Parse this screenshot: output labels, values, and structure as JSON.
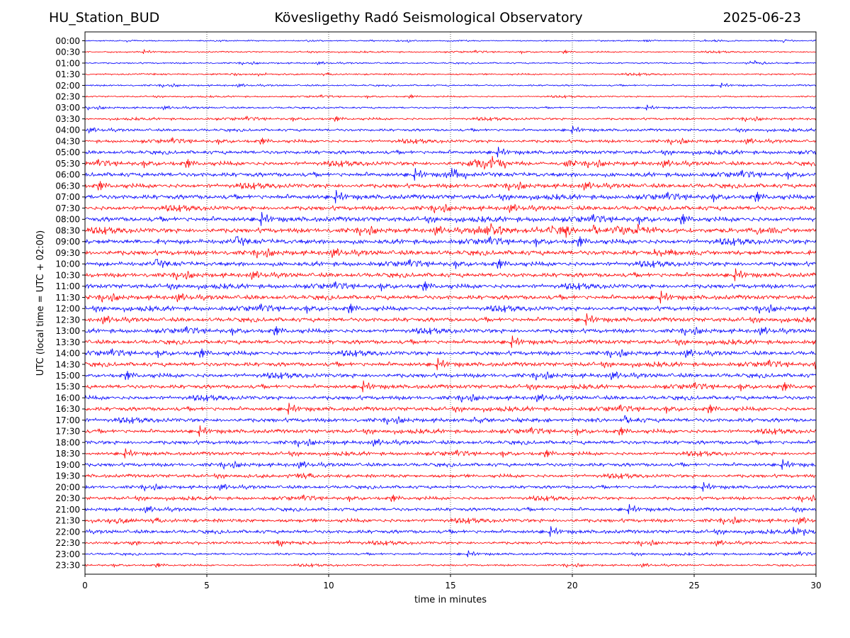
{
  "header": {
    "station": "HU_Station_BUD",
    "observatory": "Kövesligethy Radó Seismological Observatory",
    "date": "2025-06-23"
  },
  "chart_data": {
    "type": "line",
    "title": "Kövesligethy Radó Seismological Observatory",
    "xlabel": "time in minutes",
    "ylabel": "UTC (local time = UTC + 02:00)",
    "xlim": [
      0,
      30
    ],
    "xticks": [
      0,
      5,
      10,
      15,
      20,
      25,
      30
    ],
    "grid": "vertical dotted at x ticks",
    "trace_colors": [
      "#0000ff",
      "#ff0000"
    ],
    "rows": [
      {
        "label": "00:00",
        "amp": 0.12
      },
      {
        "label": "00:30",
        "amp": 0.15
      },
      {
        "label": "01:00",
        "amp": 0.16
      },
      {
        "label": "01:30",
        "amp": 0.18
      },
      {
        "label": "02:00",
        "amp": 0.18
      },
      {
        "label": "02:30",
        "amp": 0.16
      },
      {
        "label": "03:00",
        "amp": 0.2
      },
      {
        "label": "03:30",
        "amp": 0.24
      },
      {
        "label": "04:00",
        "amp": 0.28
      },
      {
        "label": "04:30",
        "amp": 0.32
      },
      {
        "label": "05:00",
        "amp": 0.38
      },
      {
        "label": "05:30",
        "amp": 0.42
      },
      {
        "label": "06:00",
        "amp": 0.45
      },
      {
        "label": "06:30",
        "amp": 0.45
      },
      {
        "label": "07:00",
        "amp": 0.48
      },
      {
        "label": "07:30",
        "amp": 0.46
      },
      {
        "label": "08:00",
        "amp": 0.5
      },
      {
        "label": "08:30",
        "amp": 0.5
      },
      {
        "label": "09:00",
        "amp": 0.5
      },
      {
        "label": "09:30",
        "amp": 0.5
      },
      {
        "label": "10:00",
        "amp": 0.46
      },
      {
        "label": "10:30",
        "amp": 0.46
      },
      {
        "label": "11:00",
        "amp": 0.46
      },
      {
        "label": "11:30",
        "amp": 0.46
      },
      {
        "label": "12:00",
        "amp": 0.46
      },
      {
        "label": "12:30",
        "amp": 0.44
      },
      {
        "label": "13:00",
        "amp": 0.44
      },
      {
        "label": "13:30",
        "amp": 0.44
      },
      {
        "label": "14:00",
        "amp": 0.44
      },
      {
        "label": "14:30",
        "amp": 0.44
      },
      {
        "label": "15:00",
        "amp": 0.44
      },
      {
        "label": "15:30",
        "amp": 0.42
      },
      {
        "label": "16:00",
        "amp": 0.42
      },
      {
        "label": "16:30",
        "amp": 0.42
      },
      {
        "label": "17:00",
        "amp": 0.42
      },
      {
        "label": "17:30",
        "amp": 0.4
      },
      {
        "label": "18:00",
        "amp": 0.4
      },
      {
        "label": "18:30",
        "amp": 0.36
      },
      {
        "label": "19:00",
        "amp": 0.38
      },
      {
        "label": "19:30",
        "amp": 0.36
      },
      {
        "label": "20:00",
        "amp": 0.34
      },
      {
        "label": "20:30",
        "amp": 0.34
      },
      {
        "label": "21:00",
        "amp": 0.36
      },
      {
        "label": "21:30",
        "amp": 0.38
      },
      {
        "label": "22:00",
        "amp": 0.38
      },
      {
        "label": "22:30",
        "amp": 0.3
      },
      {
        "label": "23:00",
        "amp": 0.24
      },
      {
        "label": "23:30",
        "amp": 0.2
      }
    ],
    "events": [
      {
        "row": "05:30",
        "start_min": 15.7,
        "end_min": 17.4,
        "amp": 1.6
      },
      {
        "row": "06:00",
        "start_min": 14.7,
        "end_min": 15.7,
        "amp": 1.5
      },
      {
        "row": "08:30",
        "start_min": 15.8,
        "end_min": 17.5,
        "amp": 1.3
      },
      {
        "row": "08:30",
        "start_min": 18.0,
        "end_min": 20.0,
        "amp": 1.0
      },
      {
        "row": "08:30",
        "start_min": 21.5,
        "end_min": 23.6,
        "amp": 1.3
      },
      {
        "row": "09:30",
        "start_min": 23.2,
        "end_min": 24.5,
        "amp": 0.9
      },
      {
        "row": "01:00",
        "start_min": 27.0,
        "end_min": 28.2,
        "amp": 0.5
      },
      {
        "row": "17:00",
        "start_min": 14.5,
        "end_min": 17.5,
        "amp": 0.5
      },
      {
        "row": "19:30",
        "start_min": 6.5,
        "end_min": 7.5,
        "amp": 0.6
      },
      {
        "row": "21:30",
        "start_min": 0.5,
        "end_min": 1.4,
        "amp": 0.6
      },
      {
        "row": "22:00",
        "start_min": 29.0,
        "end_min": 30.0,
        "amp": 0.7
      },
      {
        "row": "22:30",
        "start_min": 1.7,
        "end_min": 2.3,
        "amp": 0.7
      }
    ]
  }
}
